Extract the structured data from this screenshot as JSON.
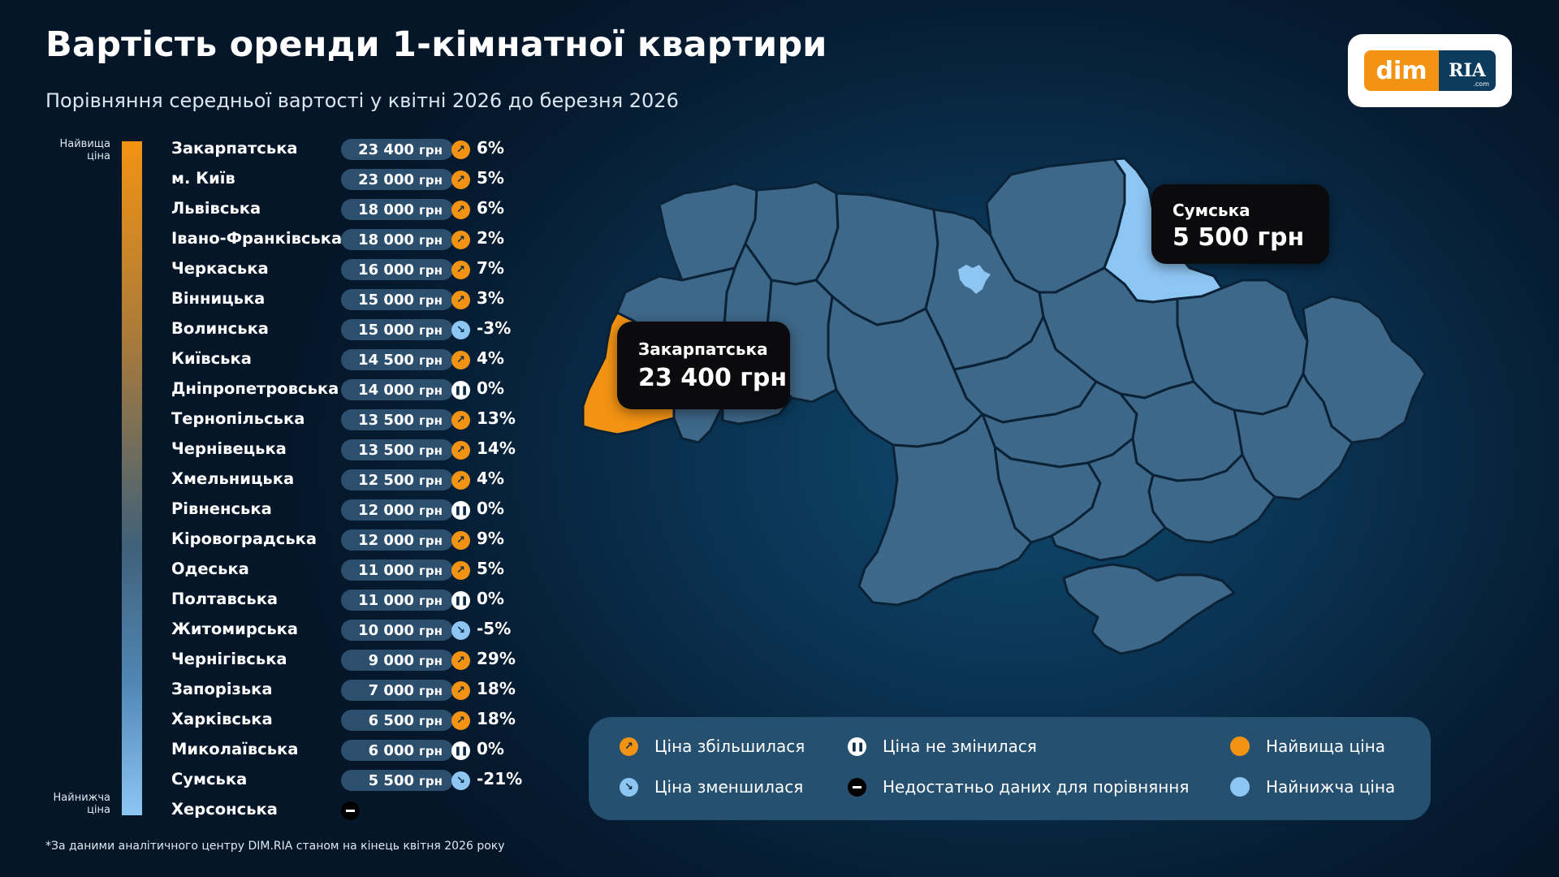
{
  "title": "Вартість оренди 1-кімнатної квартири",
  "subtitle": "Порівняння середньої вартості у квітні 2026 до березня 2026",
  "logo": {
    "dim": "dim",
    "ria": "RIA",
    "com": ".com"
  },
  "scale": {
    "top_label": "Найвища ціна",
    "bottom_label": "Найнижча ціна"
  },
  "colors": {
    "highest": "#f39313",
    "lowest": "#8ec6f3",
    "region": "#3e6889",
    "background": "#061d33"
  },
  "chart_data": {
    "type": "table",
    "currency": "грн",
    "rows": [
      {
        "region": "Закарпатська",
        "price": "23 400",
        "change": "6%",
        "trend": "up"
      },
      {
        "region": "м. Київ",
        "price": "23 000",
        "change": "5%",
        "trend": "up"
      },
      {
        "region": "Львівська",
        "price": "18 000",
        "change": "6%",
        "trend": "up"
      },
      {
        "region": "Івано-Франківська",
        "price": "18 000",
        "change": "2%",
        "trend": "up"
      },
      {
        "region": "Черкаська",
        "price": "16 000",
        "change": "7%",
        "trend": "up"
      },
      {
        "region": "Вінницька",
        "price": "15 000",
        "change": "3%",
        "trend": "up"
      },
      {
        "region": "Волинська",
        "price": "15 000",
        "change": "-3%",
        "trend": "down"
      },
      {
        "region": "Київська",
        "price": "14 500",
        "change": "4%",
        "trend": "up"
      },
      {
        "region": "Дніпропетровська",
        "price": "14 000",
        "change": "0%",
        "trend": "same"
      },
      {
        "region": "Тернопільська",
        "price": "13 500",
        "change": "13%",
        "trend": "up"
      },
      {
        "region": "Чернівецька",
        "price": "13 500",
        "change": "14%",
        "trend": "up"
      },
      {
        "region": "Хмельницька",
        "price": "12 500",
        "change": "4%",
        "trend": "up"
      },
      {
        "region": "Рівненська",
        "price": "12 000",
        "change": "0%",
        "trend": "same"
      },
      {
        "region": "Кіровоградська",
        "price": "12 000",
        "change": "9%",
        "trend": "up"
      },
      {
        "region": "Одеська",
        "price": "11 000",
        "change": "5%",
        "trend": "up"
      },
      {
        "region": "Полтавська",
        "price": "11 000",
        "change": "0%",
        "trend": "same"
      },
      {
        "region": "Житомирська",
        "price": "10 000",
        "change": "-5%",
        "trend": "down"
      },
      {
        "region": "Чернігівська",
        "price": "9 000",
        "change": "29%",
        "trend": "up"
      },
      {
        "region": "Запорізька",
        "price": "7 000",
        "change": "18%",
        "trend": "up"
      },
      {
        "region": "Харківська",
        "price": "6 500",
        "change": "18%",
        "trend": "up"
      },
      {
        "region": "Миколаївська",
        "price": "6 000",
        "change": "0%",
        "trend": "same"
      },
      {
        "region": "Сумська",
        "price": "5 500",
        "change": "-21%",
        "trend": "down"
      },
      {
        "region": "Херсонська",
        "price": null,
        "change": null,
        "trend": "no-data"
      }
    ]
  },
  "map": {
    "highest": {
      "region": "Закарпатська",
      "price_label": "23 400 грн"
    },
    "lowest": {
      "region": "Сумська",
      "price_label": "5 500 грн"
    }
  },
  "legend": {
    "up": "Ціна збільшилася",
    "down": "Ціна зменшилася",
    "same": "Ціна не змінилася",
    "no_data": "Недостатньо даних для порівняння",
    "highest": "Найвища ціна",
    "lowest": "Найнижча ціна"
  },
  "footnote": "*За даними аналітичного центру DIM.RIA станом на кінець квітня 2026 року"
}
